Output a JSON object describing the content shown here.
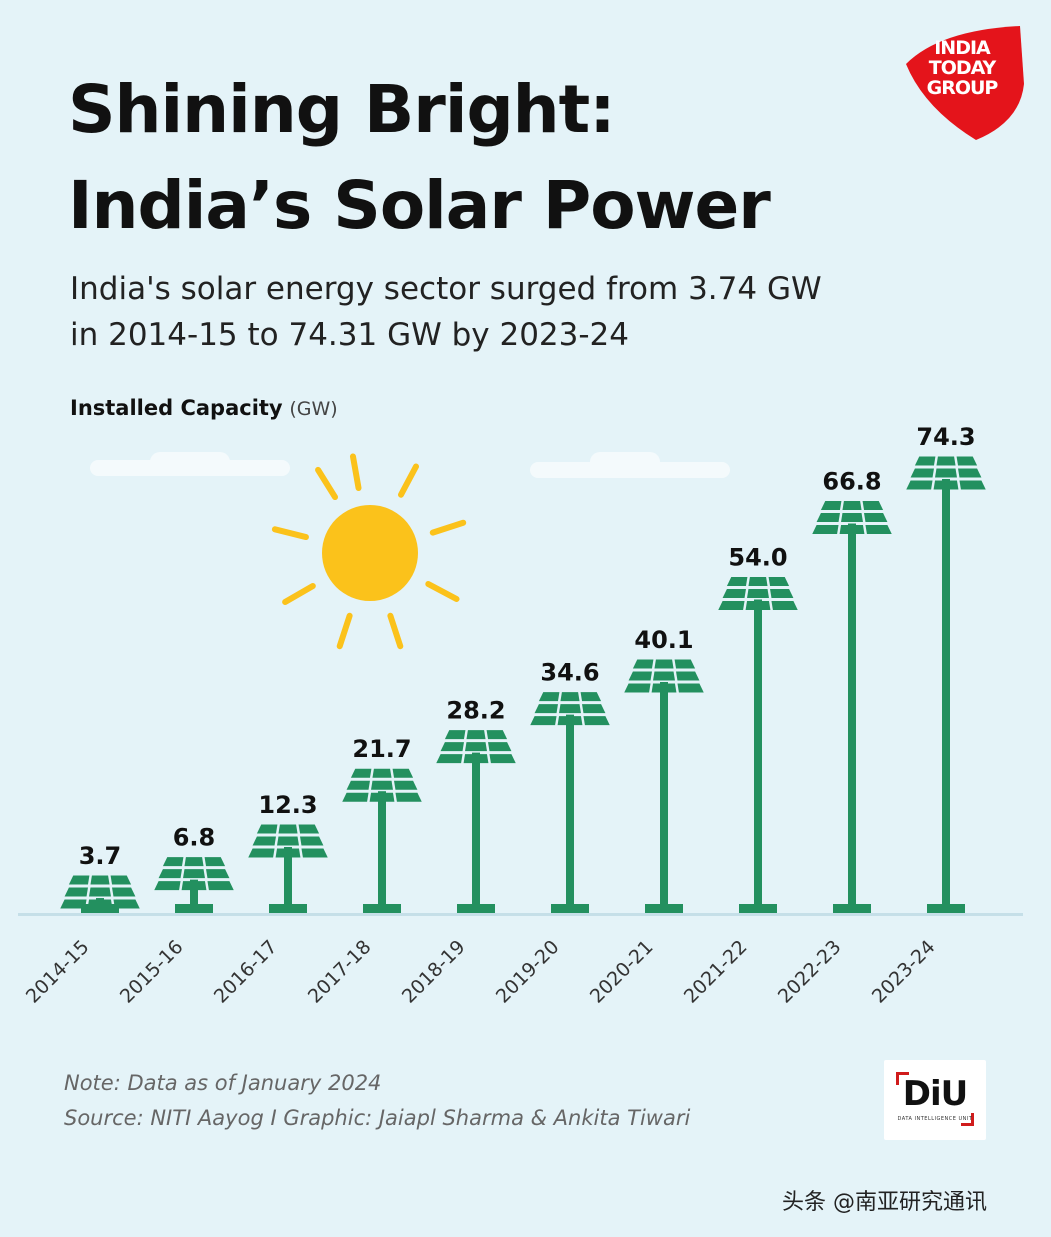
{
  "title": {
    "line1": "Shining Bright:",
    "line2": "India’s Solar Power"
  },
  "subtitle": {
    "line1": "India's solar energy sector surged from 3.74 GW",
    "line2": "in 2014-15 to 74.31 GW by 2023-24"
  },
  "chart_data": {
    "type": "bar",
    "title": "Installed Capacity",
    "ylabel": "Installed Capacity",
    "yunit": "(GW)",
    "categories": [
      "2014-15",
      "2015-16",
      "2016-17",
      "2017-18",
      "2018-19",
      "2019-20",
      "2020-21",
      "2021-22",
      "2022-23",
      "2023-24"
    ],
    "values": [
      3.7,
      6.8,
      12.3,
      21.7,
      28.2,
      34.6,
      40.1,
      54.0,
      66.8,
      74.3
    ],
    "data_labels": [
      "3.7",
      "6.8",
      "12.3",
      "21.7",
      "28.2",
      "34.6",
      "40.1",
      "54.0",
      "66.8",
      "74.3"
    ],
    "ylim": [
      0,
      80
    ],
    "grid": false,
    "legend": "none",
    "bar_color": "#23905f"
  },
  "footer": {
    "note": "Note: Data as of January 2024",
    "source": "Source: NITI Aayog  I Graphic: Jaiapl Sharma & Ankita Tiwari"
  },
  "brand": {
    "logo_lines": [
      "INDIA",
      "TODAY",
      "GROUP"
    ],
    "logo_color": "#e4141b",
    "diu_mark": "DiU",
    "diu_sub": "DATA INTELLIGENCE UNIT"
  },
  "watermark": "头条 @南亚研究通讯",
  "colors": {
    "background": "#e4f3f8",
    "sun": "#fbc21b",
    "ground": "#c5dfe8"
  }
}
